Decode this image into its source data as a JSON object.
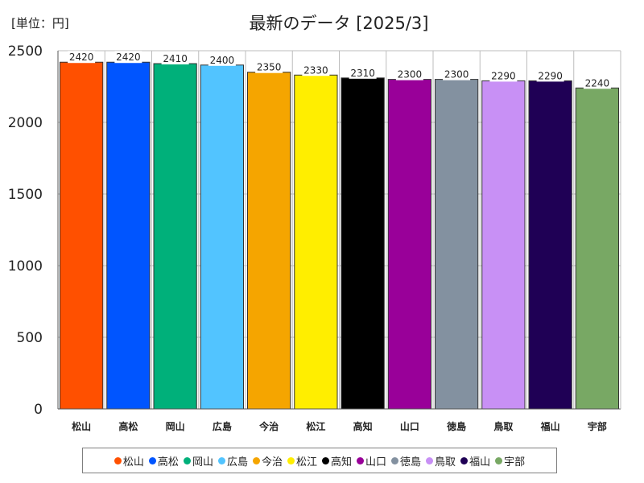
{
  "unit_label": "[単位：円]",
  "chart_data": {
    "type": "bar",
    "title": "最新のデータ [2025/3]",
    "xlabel": "",
    "ylabel": "",
    "ylim": [
      0,
      2500
    ],
    "yticks": [
      0,
      500,
      1000,
      1500,
      2000,
      2500
    ],
    "grid": true,
    "legend_position": "bottom",
    "categories": [
      "松山",
      "高松",
      "岡山",
      "広島",
      "今治",
      "松江",
      "高知",
      "山口",
      "徳島",
      "鳥取",
      "福山",
      "宇部"
    ],
    "values": [
      2420,
      2420,
      2410,
      2400,
      2350,
      2330,
      2310,
      2300,
      2300,
      2290,
      2290,
      2240
    ],
    "colors": [
      "#ff5000",
      "#0055ff",
      "#00b07a",
      "#52c4ff",
      "#f5a500",
      "#ffee00",
      "#000000",
      "#990099",
      "#8391a0",
      "#c890f5",
      "#1f0055",
      "#78a864"
    ]
  }
}
